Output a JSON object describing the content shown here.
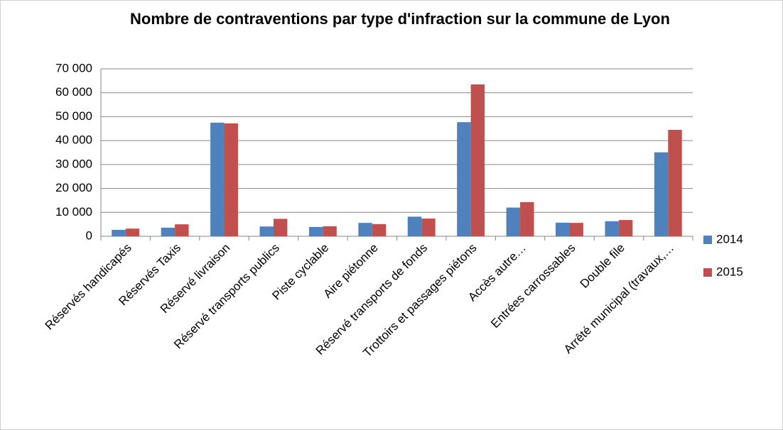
{
  "chart_data": {
    "type": "bar",
    "title": "Nombre de contraventions par type d'infraction sur la commune de Lyon",
    "categories": [
      "Réservés handicapés",
      "Réservés Taxis",
      "Réservé livraison",
      "Réservé transports publics",
      "Piste cyclable",
      "Aire piétonne",
      "Réservé transports de fonds",
      "Trottoirs et passages piétons",
      "Accès autre…",
      "Entrées carrossables",
      "Double file",
      "Arrêté municipal (travaux,…"
    ],
    "series": [
      {
        "name": "2014",
        "color": "#4f81bd",
        "values": [
          2700,
          3600,
          47500,
          4100,
          3900,
          5600,
          8200,
          47700,
          12000,
          5700,
          6300,
          35100
        ]
      },
      {
        "name": "2015",
        "color": "#c0504d",
        "values": [
          3200,
          5000,
          47200,
          7300,
          4200,
          5100,
          7400,
          63500,
          14300,
          5600,
          6800,
          44500
        ]
      }
    ],
    "ylim": [
      0,
      70000
    ],
    "yticks": [
      0,
      {
        "value": 10000,
        "label": "10 000"
      },
      {
        "value": 20000,
        "label": "20 000"
      },
      {
        "value": 30000,
        "label": "30 000"
      },
      {
        "value": 40000,
        "label": "40 000"
      },
      {
        "value": 50000,
        "label": "50 000"
      },
      {
        "value": 60000,
        "label": "60 000"
      },
      {
        "value": 70000,
        "label": "70 000"
      }
    ],
    "grid": true,
    "legend": "right"
  }
}
